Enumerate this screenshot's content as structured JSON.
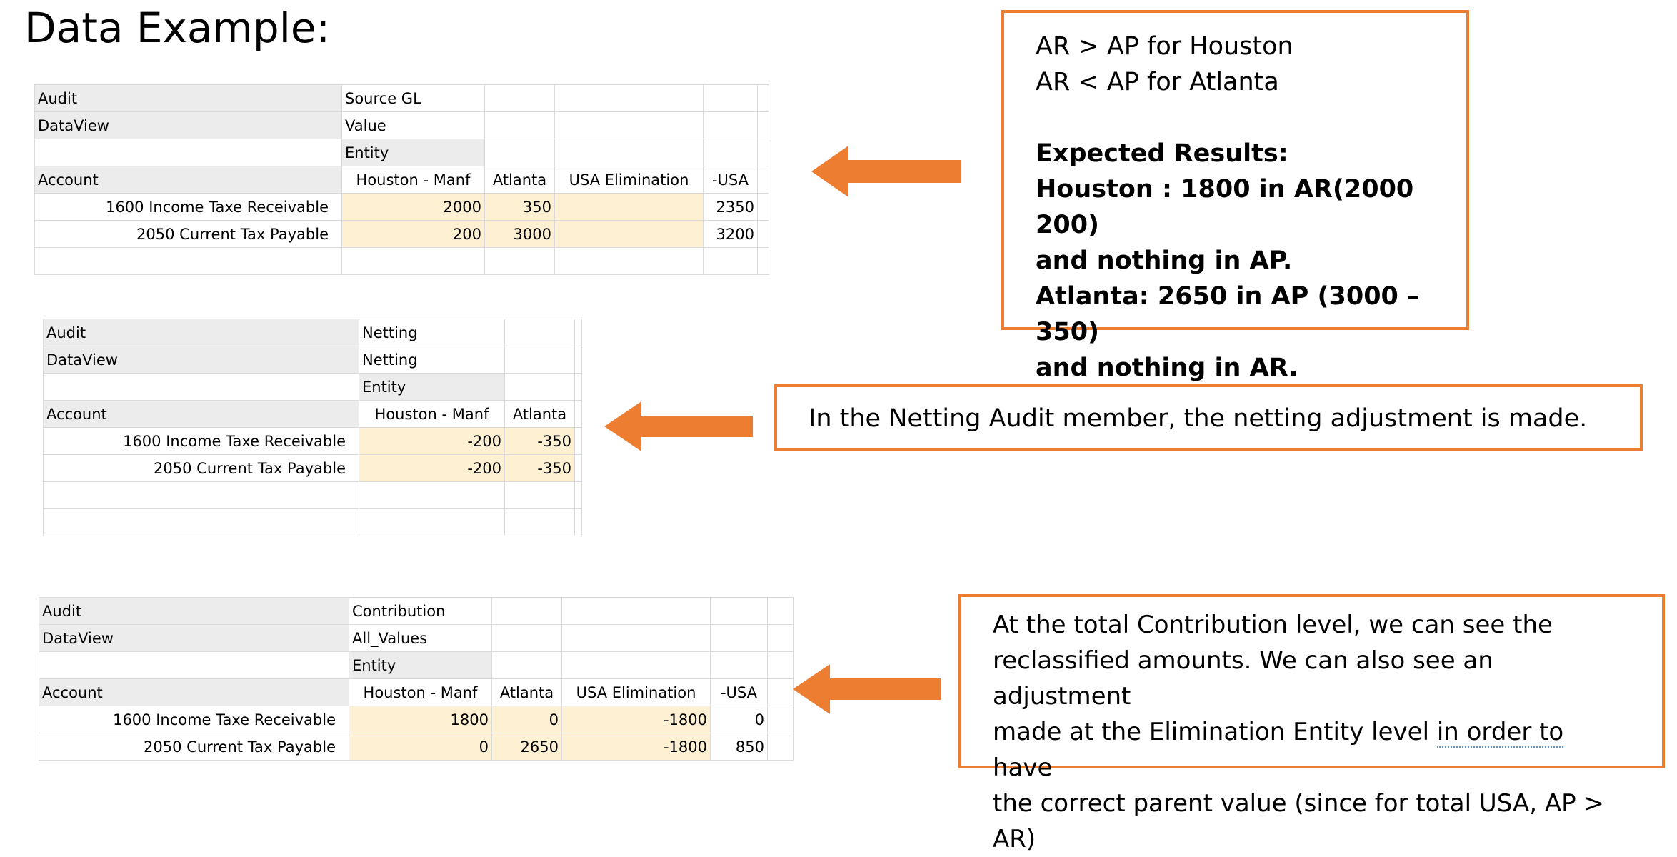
{
  "title": "Data Example:",
  "table1": {
    "rows": [
      {
        "label": "Audit",
        "value": "Source GL"
      },
      {
        "label": "DataView",
        "value": "Value"
      },
      {
        "label": "",
        "value": "Entity"
      }
    ],
    "account_label": "Account",
    "columns": [
      "Houston - Manf",
      "Atlanta",
      "USA Elimination",
      "-USA"
    ],
    "data": [
      {
        "account": "1600 Income Taxe Receivable",
        "values": [
          "2000",
          "350",
          "",
          "2350"
        ]
      },
      {
        "account": "2050 Current Tax Payable",
        "values": [
          "200",
          "3000",
          "",
          "3200"
        ]
      }
    ]
  },
  "table2": {
    "rows": [
      {
        "label": "Audit",
        "value": "Netting"
      },
      {
        "label": "DataView",
        "value": "Netting"
      },
      {
        "label": "",
        "value": "Entity"
      }
    ],
    "account_label": "Account",
    "columns": [
      "Houston - Manf",
      "Atlanta"
    ],
    "data": [
      {
        "account": "1600 Income Taxe Receivable",
        "values": [
          "-200",
          "-350"
        ]
      },
      {
        "account": "2050 Current Tax Payable",
        "values": [
          "-200",
          "-350"
        ]
      }
    ]
  },
  "table3": {
    "rows": [
      {
        "label": "Audit",
        "value": "Contribution"
      },
      {
        "label": "DataView",
        "value": "All_Values"
      },
      {
        "label": "",
        "value": "Entity"
      }
    ],
    "account_label": "Account",
    "columns": [
      "Houston - Manf",
      "Atlanta",
      "USA Elimination",
      "-USA"
    ],
    "data": [
      {
        "account": "1600 Income Taxe Receivable",
        "values": [
          "1800",
          "0",
          "-1800",
          "0"
        ]
      },
      {
        "account": "2050 Current Tax Payable",
        "values": [
          "0",
          "2650",
          "-1800",
          "850"
        ]
      }
    ]
  },
  "callout1": {
    "line1": "AR > AP for Houston",
    "line2": "AR < AP for Atlanta",
    "heading": "Expected Results:",
    "line3": "Houston : 1800 in AR(2000 200)",
    "line4": "and nothing in AP.",
    "line5": "Atlanta: 2650 in AP (3000 – 350)",
    "line6": "and nothing in AR."
  },
  "callout2": {
    "text": "In the Netting Audit member, the netting adjustment is made."
  },
  "callout3": {
    "line1": "At the total Contribution level, we can see the",
    "line2": "reclassified amounts. We can also see an adjustment",
    "line3a": "made at the Elimination Entity level ",
    "line3b": "in order to",
    "line3c": " have",
    "line4": "the correct parent value (since for total USA, AP > AR)"
  },
  "colors": {
    "accent": "#ed7d31",
    "highlight": "#fdf0d3",
    "header": "#ececec"
  },
  "icons": [
    "left-arrow-icon"
  ]
}
